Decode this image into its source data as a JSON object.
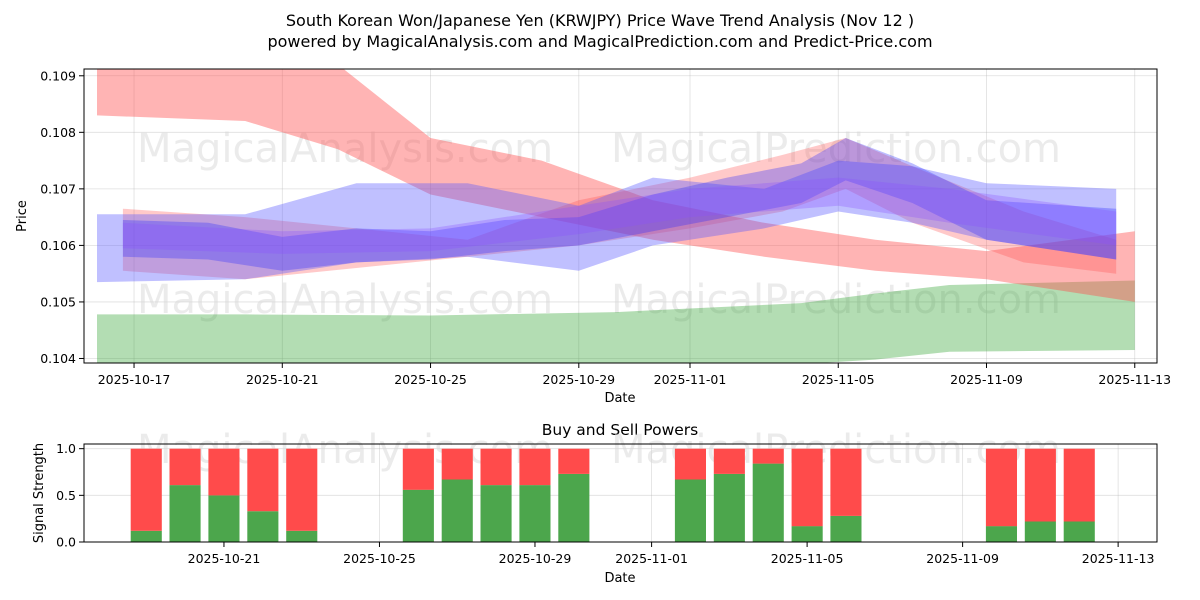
{
  "chart_data": [
    {
      "type": "area",
      "title": "South Korean Won/Japanese Yen (KRWJPY) Price Wave Trend Analysis (Nov 12 )",
      "subtitle": "powered by MagicalAnalysis.com and MagicalPrediction.com and Predict-Price.com",
      "xlabel": "Date",
      "ylabel": "Price",
      "watermarks": [
        "MagicalAnalysis.com",
        "MagicalPrediction.com"
      ],
      "x_ticks": [
        "2025-10-17",
        "2025-10-21",
        "2025-10-25",
        "2025-10-29",
        "2025-11-01",
        "2025-11-05",
        "2025-11-09",
        "2025-11-13"
      ],
      "x_tick_days": [
        0,
        4,
        8,
        12,
        15,
        19,
        23,
        27
      ],
      "xlim_days": [
        -1.35,
        27.6
      ],
      "y_ticks": [
        "0.104",
        "0.105",
        "0.106",
        "0.107",
        "0.108",
        "0.109"
      ],
      "y_tick_values": [
        0.104,
        0.105,
        0.106,
        0.107,
        0.108,
        0.109
      ],
      "ylim": [
        0.10392,
        0.10912
      ],
      "bands": [
        {
          "name": "green-lower-band",
          "color": "#2ca02c",
          "opacity": 0.36,
          "x": [
            -1,
            3,
            8,
            13,
            18,
            20,
            22,
            27
          ],
          "upper": [
            0.10478,
            0.10478,
            0.10476,
            0.10482,
            0.10498,
            0.10515,
            0.1053,
            0.10538
          ],
          "lower": [
            0.1039,
            0.1039,
            0.1039,
            0.1039,
            0.1039,
            0.10398,
            0.10412,
            0.10415
          ]
        },
        {
          "name": "red-upper-band",
          "color": "#ff4d4d",
          "opacity": 0.42,
          "x": [
            -1,
            3,
            5.5,
            8,
            11,
            14,
            17,
            20,
            23,
            27
          ],
          "upper": [
            0.1092,
            0.1092,
            0.1092,
            0.1079,
            0.1075,
            0.1068,
            0.1064,
            0.1061,
            0.1059,
            0.10625
          ],
          "lower": [
            0.1083,
            0.1082,
            0.1077,
            0.1069,
            0.1065,
            0.1061,
            0.1058,
            0.10555,
            0.1054,
            0.105
          ]
        },
        {
          "name": "red-middle-band",
          "color": "#ff4d4d",
          "opacity": 0.3,
          "x": [
            -0.3,
            3,
            6,
            9,
            12,
            15,
            17.5,
            19.2,
            21,
            24,
            26.5
          ],
          "upper": [
            0.10665,
            0.1065,
            0.1063,
            0.1061,
            0.1068,
            0.1072,
            0.1076,
            0.1079,
            0.1074,
            0.1066,
            0.1061
          ],
          "lower": [
            0.10555,
            0.1054,
            0.1056,
            0.1058,
            0.106,
            0.1063,
            0.1066,
            0.107,
            0.1064,
            0.1057,
            0.1055
          ]
        },
        {
          "name": "blue-main-band",
          "color": "#5a5aff",
          "opacity": 0.38,
          "x": [
            -1,
            3,
            6,
            9,
            12,
            14,
            17,
            19,
            21,
            23,
            26.5
          ],
          "upper": [
            0.10655,
            0.10655,
            0.1071,
            0.1071,
            0.1067,
            0.1072,
            0.107,
            0.1075,
            0.1074,
            0.1071,
            0.107
          ],
          "lower": [
            0.10535,
            0.1054,
            0.1057,
            0.1058,
            0.10555,
            0.106,
            0.1063,
            0.1066,
            0.1064,
            0.1061,
            0.10575
          ]
        },
        {
          "name": "blue-inner-band",
          "color": "#3030ff",
          "opacity": 0.32,
          "x": [
            -0.3,
            2,
            4,
            6,
            8,
            10,
            12,
            14,
            16,
            18,
            19.2,
            21,
            23,
            26.5
          ],
          "upper": [
            0.10645,
            0.1064,
            0.10615,
            0.1063,
            0.10625,
            0.10645,
            0.1065,
            0.1069,
            0.1072,
            0.10745,
            0.1079,
            0.10745,
            0.1068,
            0.10665
          ],
          "lower": [
            0.1058,
            0.10575,
            0.10555,
            0.1057,
            0.10575,
            0.1059,
            0.106,
            0.10625,
            0.1065,
            0.10675,
            0.10715,
            0.10675,
            0.1061,
            0.10575
          ]
        },
        {
          "name": "purple-trend-band",
          "color": "#8a4fff",
          "opacity": 0.3,
          "x": [
            -0.3,
            4,
            8,
            12,
            15,
            19,
            22,
            26.5
          ],
          "upper": [
            0.1064,
            0.10625,
            0.1063,
            0.1067,
            0.107,
            0.1072,
            0.107,
            0.1066
          ],
          "lower": [
            0.10595,
            0.10585,
            0.1059,
            0.1062,
            0.1065,
            0.1067,
            0.1064,
            0.106
          ]
        }
      ]
    },
    {
      "type": "bar",
      "title": "Buy and Sell Powers",
      "xlabel": "Date",
      "ylabel": "Signal Strength",
      "x_ticks": [
        "2025-10-21",
        "2025-10-25",
        "2025-10-29",
        "2025-11-01",
        "2025-11-05",
        "2025-11-09",
        "2025-11-13"
      ],
      "x_tick_days": [
        4,
        8,
        12,
        15,
        19,
        23,
        27
      ],
      "xlim_days": [
        0.4,
        28.0
      ],
      "y_ticks": [
        "0.0",
        "0.5",
        "1.0"
      ],
      "y_tick_values": [
        0.0,
        0.5,
        1.0
      ],
      "ylim": [
        0,
        1.05
      ],
      "buy_color": "#4ca64c",
      "sell_color": "#ff4b4b",
      "days": [
        2,
        3,
        4,
        5,
        6,
        9,
        10,
        11,
        12,
        13,
        16,
        17,
        18,
        19,
        20,
        24,
        25,
        26
      ],
      "buy": [
        0.12,
        0.61,
        0.5,
        0.33,
        0.12,
        0.56,
        0.67,
        0.61,
        0.61,
        0.73,
        0.67,
        0.73,
        0.84,
        0.17,
        0.28,
        0.17,
        0.22,
        0.22
      ],
      "sell": [
        0.88,
        0.39,
        0.5,
        0.67,
        0.88,
        0.44,
        0.33,
        0.39,
        0.39,
        0.27,
        0.33,
        0.27,
        0.16,
        0.83,
        0.72,
        0.83,
        0.78,
        0.78
      ]
    }
  ]
}
